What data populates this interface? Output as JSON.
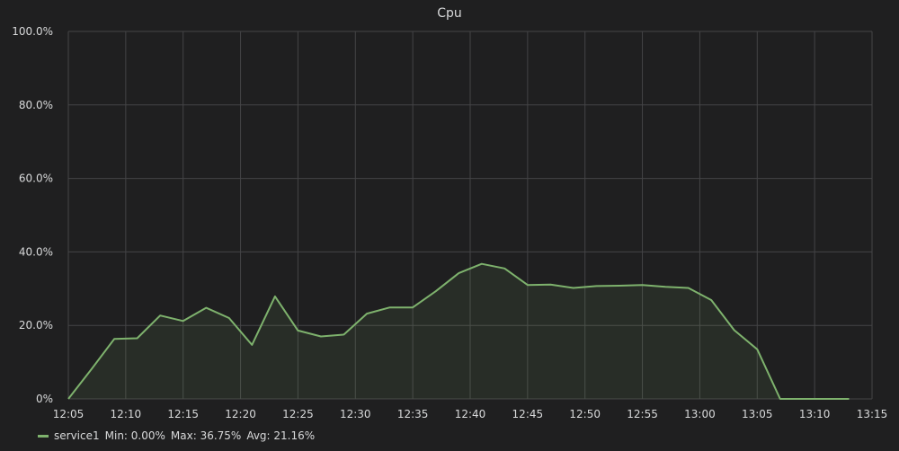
{
  "chart_data": {
    "type": "area",
    "title": "Cpu",
    "xlabel": "",
    "ylabel": "",
    "x_ticks": [
      "12:05",
      "12:10",
      "12:15",
      "12:20",
      "12:25",
      "12:30",
      "12:35",
      "12:40",
      "12:45",
      "12:50",
      "12:55",
      "13:00",
      "13:05",
      "13:10",
      "13:15"
    ],
    "y_ticks": [
      "0%",
      "20.0%",
      "40.0%",
      "60.0%",
      "80.0%",
      "100.0%"
    ],
    "xlim": [
      "12:05",
      "13:15"
    ],
    "ylim": [
      0,
      100
    ],
    "y_unit": "percent",
    "grid": true,
    "legend_position": "bottom-left",
    "series": [
      {
        "name": "service1",
        "color": "#7eb26d",
        "x": [
          "12:05",
          "12:07",
          "12:09",
          "12:11",
          "12:13",
          "12:15",
          "12:17",
          "12:19",
          "12:21",
          "12:23",
          "12:25",
          "12:27",
          "12:29",
          "12:31",
          "12:33",
          "12:35",
          "12:37",
          "12:39",
          "12:41",
          "12:43",
          "12:45",
          "12:47",
          "12:49",
          "12:51",
          "12:53",
          "12:55",
          "12:57",
          "12:59",
          "13:01",
          "13:03",
          "13:05",
          "13:07",
          "13:09",
          "13:11",
          "13:13"
        ],
        "values": [
          0,
          8.0,
          16.3,
          16.5,
          22.7,
          21.2,
          24.8,
          22.0,
          14.7,
          27.9,
          18.6,
          17.0,
          17.5,
          23.2,
          24.9,
          24.9,
          29.3,
          34.2,
          36.75,
          35.5,
          31.0,
          31.1,
          30.2,
          30.7,
          30.8,
          31.0,
          30.5,
          30.2,
          26.9,
          18.7,
          13.5,
          0,
          0,
          0,
          0
        ]
      }
    ]
  },
  "legend": {
    "series_name": "service1",
    "min": "Min: 0.00%",
    "max": "Max: 36.75%",
    "avg": "Avg: 21.16%"
  }
}
